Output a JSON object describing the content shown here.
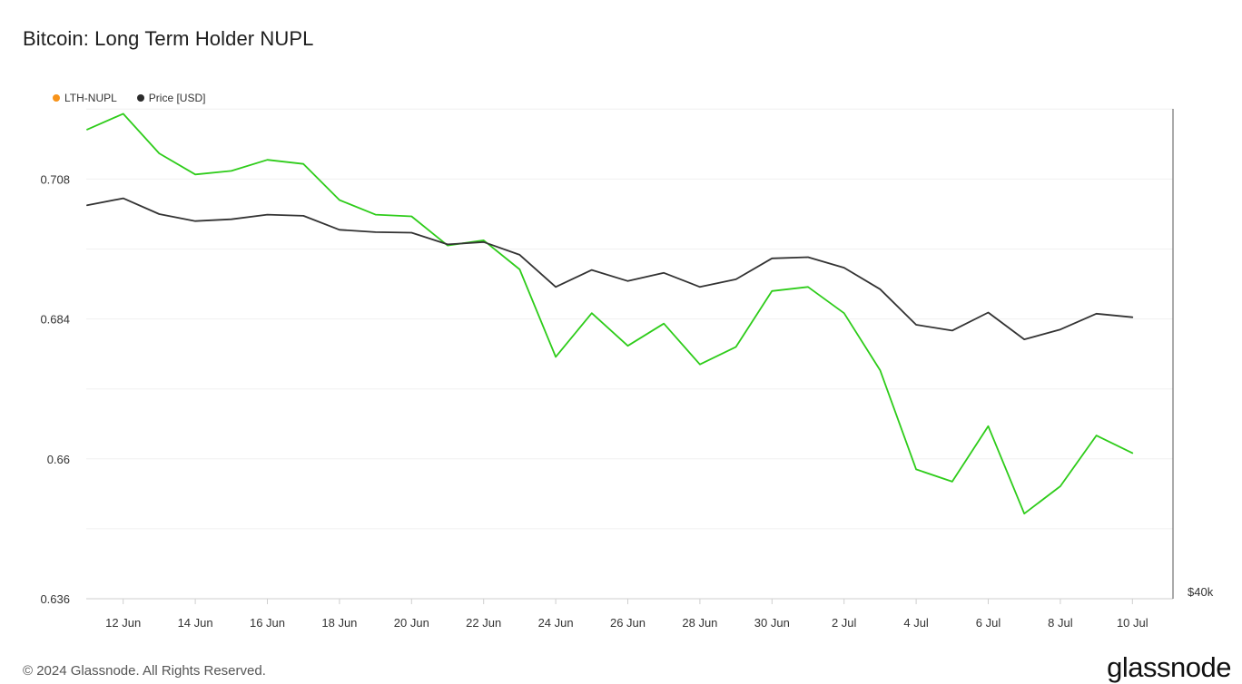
{
  "title": "Bitcoin: Long Term Holder NUPL",
  "legend": [
    {
      "label": "LTH-NUPL",
      "color": "#f7931a"
    },
    {
      "label": "Price [USD]",
      "color": "#2b2b2b"
    }
  ],
  "footer": "© 2024 Glassnode. All Rights Reserved.",
  "brand": "glassnode",
  "chart_data": {
    "type": "line",
    "x": [
      "11 Jun",
      "12 Jun",
      "13 Jun",
      "14 Jun",
      "15 Jun",
      "16 Jun",
      "17 Jun",
      "18 Jun",
      "19 Jun",
      "20 Jun",
      "21 Jun",
      "22 Jun",
      "23 Jun",
      "24 Jun",
      "25 Jun",
      "26 Jun",
      "27 Jun",
      "28 Jun",
      "29 Jun",
      "30 Jun",
      "1 Jul",
      "2 Jul",
      "3 Jul",
      "4 Jul",
      "5 Jul",
      "6 Jul",
      "7 Jul",
      "8 Jul",
      "9 Jul",
      "10 Jul"
    ],
    "x_ticks": [
      "12 Jun",
      "14 Jun",
      "16 Jun",
      "18 Jun",
      "20 Jun",
      "22 Jun",
      "24 Jun",
      "26 Jun",
      "28 Jun",
      "30 Jun",
      "2 Jul",
      "4 Jul",
      "6 Jul",
      "8 Jul",
      "10 Jul"
    ],
    "y_left_ticks": [
      "0.708",
      "0.684",
      "0.66",
      "0.636"
    ],
    "y_right_ticks": [
      "$40k"
    ],
    "ylim": [
      0.636,
      0.7205
    ],
    "grid": true,
    "legend_position": "top-left",
    "series": [
      {
        "name": "LTH-NUPL",
        "color": "#2ecc1a",
        "values": [
          0.7165,
          0.7192,
          0.7124,
          0.7088,
          0.7094,
          0.7113,
          0.7106,
          0.7044,
          0.7019,
          0.7016,
          0.6966,
          0.6975,
          0.6925,
          0.6775,
          0.685,
          0.6794,
          0.6832,
          0.6762,
          0.6792,
          0.6888,
          0.6895,
          0.685,
          0.6752,
          0.6582,
          0.6561,
          0.6656,
          0.6506,
          0.6553,
          0.664,
          0.661
        ]
      },
      {
        "name": "Price [USD]",
        "color": "#333333",
        "values": [
          0.7035,
          0.7047,
          0.702,
          0.7008,
          0.7011,
          0.7019,
          0.7017,
          0.6993,
          0.6989,
          0.6988,
          0.6968,
          0.6972,
          0.695,
          0.6895,
          0.6924,
          0.6905,
          0.6919,
          0.6895,
          0.6908,
          0.6944,
          0.6946,
          0.6928,
          0.6891,
          0.683,
          0.682,
          0.6851,
          0.6805,
          0.6822,
          0.6849,
          0.6843
        ]
      }
    ]
  }
}
